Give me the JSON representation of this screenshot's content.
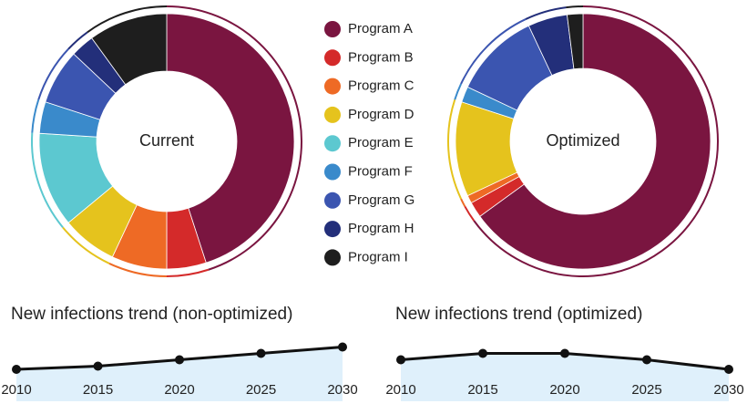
{
  "chart_data": [
    {
      "type": "donut",
      "label": "Current",
      "categories": [
        "Program A",
        "Program B",
        "Program C",
        "Program D",
        "Program E",
        "Program F",
        "Program G",
        "Program H",
        "Program I"
      ],
      "values": [
        45,
        5,
        7,
        7,
        12,
        4,
        7,
        3,
        10
      ],
      "colors": [
        "#7a1540",
        "#d42a2a",
        "#ee6a25",
        "#e5c31d",
        "#5cc8d0",
        "#3a8acb",
        "#3b55b0",
        "#232f7a",
        "#1e1e1e"
      ]
    },
    {
      "type": "donut",
      "label": "Optimized",
      "values": [
        65,
        2,
        1,
        12,
        0,
        2,
        11,
        5,
        2
      ],
      "colors": [
        "#7a1540",
        "#d42a2a",
        "#ee6a25",
        "#e5c31d",
        "#5cc8d0",
        "#3a8acb",
        "#3b55b0",
        "#232f7a",
        "#1e1e1e"
      ]
    },
    {
      "type": "area-line",
      "title": "New infections trend (non-optimized)",
      "x": [
        2010,
        2015,
        2020,
        2025,
        2030
      ],
      "values": [
        2.0,
        2.2,
        2.6,
        3.0,
        3.4
      ],
      "xlim": [
        2010,
        2030
      ],
      "ylim": [
        0,
        8
      ],
      "xticks": [
        2010,
        2015,
        2020,
        2025,
        2030
      ],
      "color": "#111111",
      "fill": "#dff0fb"
    },
    {
      "type": "area-line",
      "title": "New infections trend (optimized)",
      "x": [
        2010,
        2015,
        2020,
        2025,
        2030
      ],
      "values": [
        2.6,
        3.0,
        3.0,
        2.6,
        2.0
      ],
      "xlim": [
        2010,
        2030
      ],
      "ylim": [
        0,
        8
      ],
      "xticks": [
        2010,
        2015,
        2020,
        2025,
        2030
      ],
      "color": "#111111",
      "fill": "#dff0fb"
    }
  ]
}
